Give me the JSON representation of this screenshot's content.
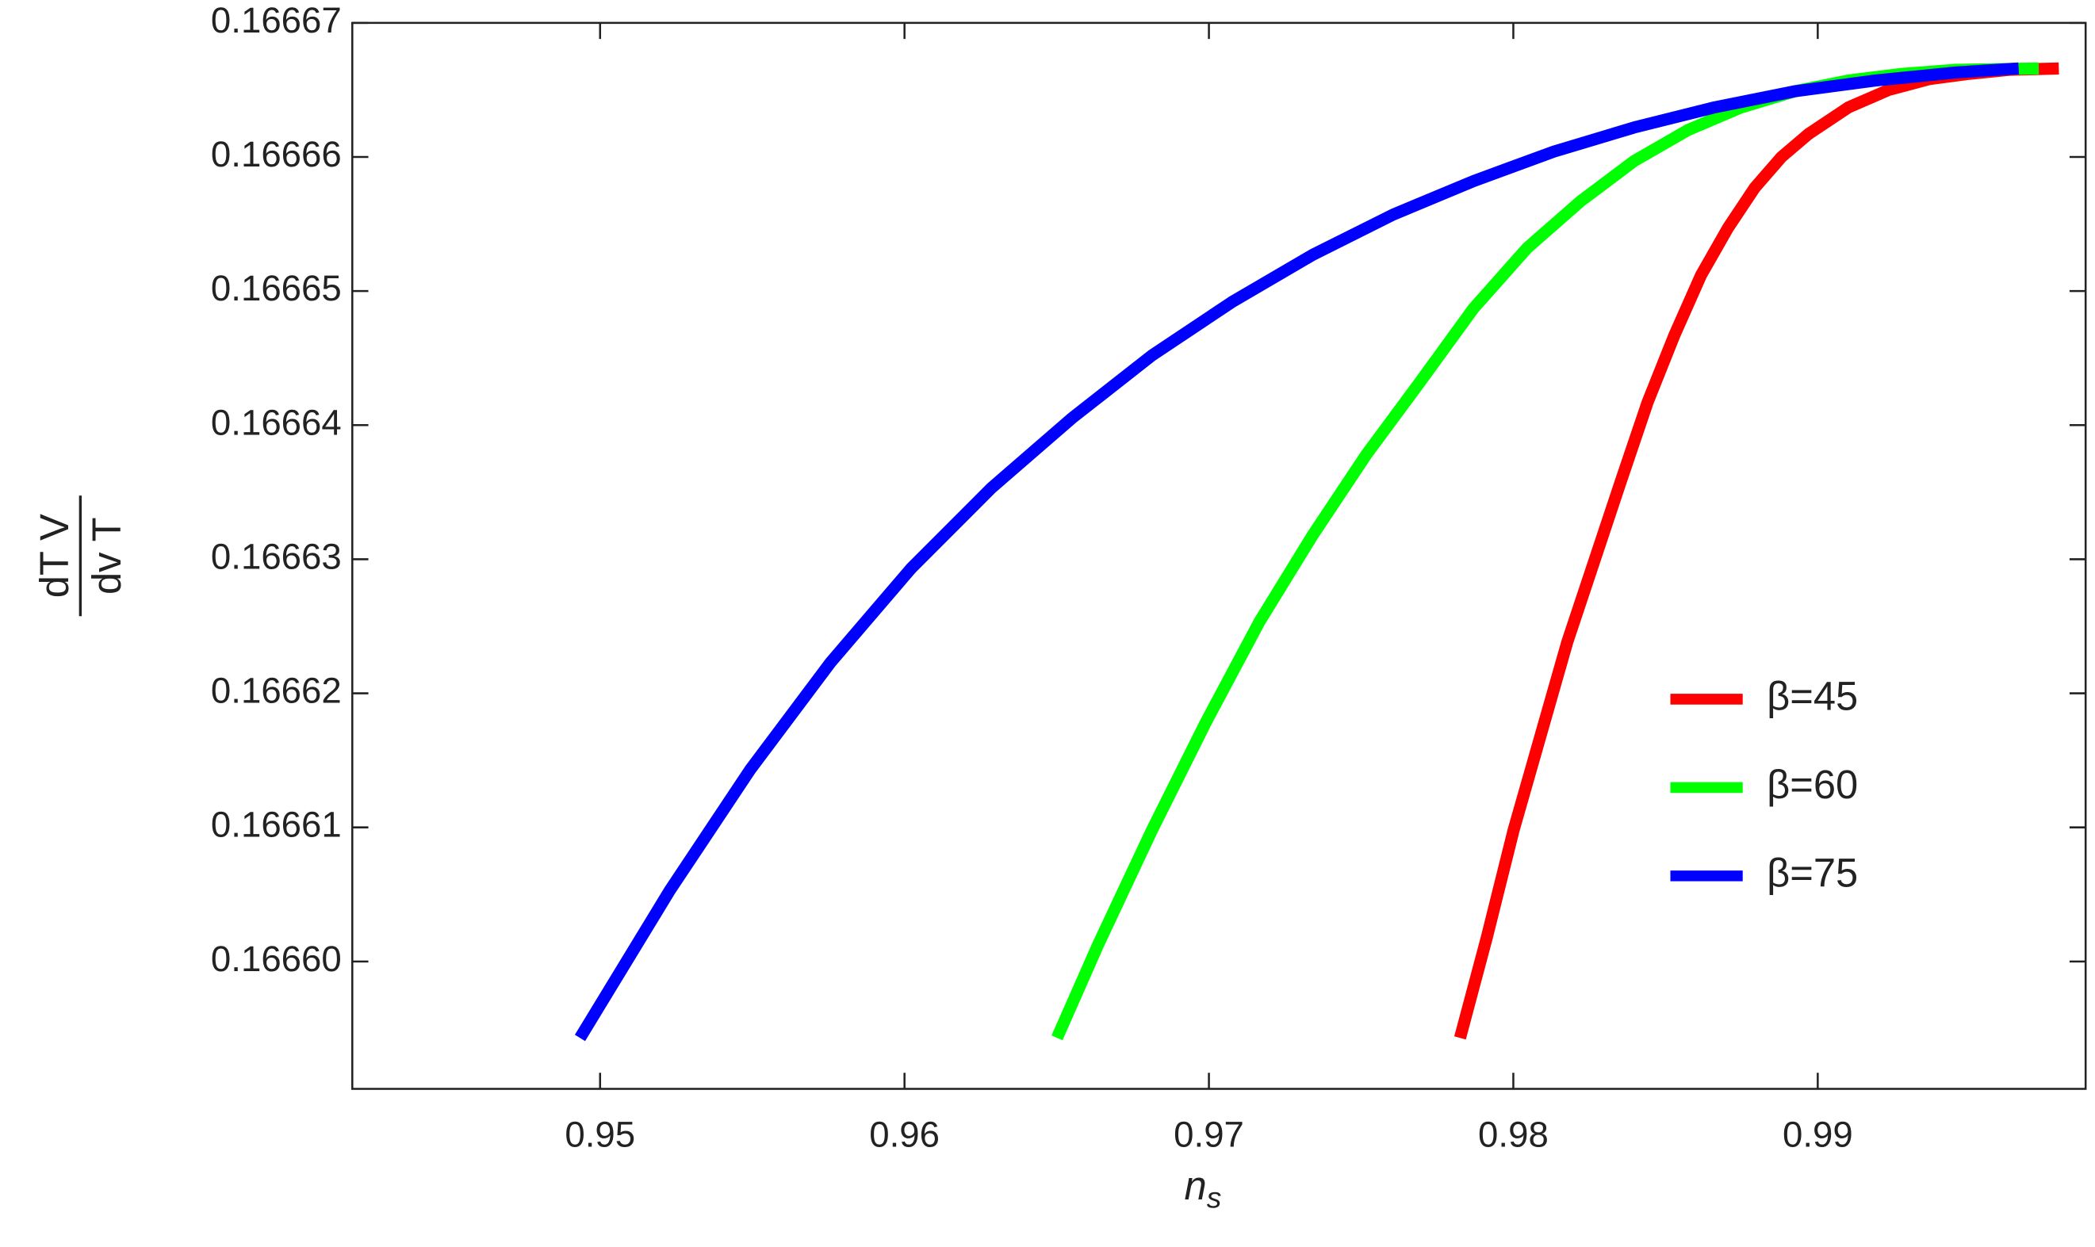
{
  "chart_data": {
    "type": "line",
    "xlabel": {
      "text": "n",
      "subscript": "s"
    },
    "ylabel": {
      "numerator": "dT V",
      "denominator": "dv T"
    },
    "xlim": [
      0.94186,
      0.9988
    ],
    "ylim": [
      0.1665905,
      0.16667
    ],
    "xticks": [
      0.95,
      0.96,
      0.97,
      0.98,
      0.99
    ],
    "yticks": [
      {
        "value": 0.1666,
        "label": "0.16660"
      },
      0.16661,
      0.16662,
      0.16663,
      0.16664,
      0.16665,
      0.16666,
      0.16667
    ],
    "legend": "right",
    "series": [
      {
        "name": "β=45",
        "color": "#ff0000",
        "x": [
          0.97825,
          0.97913,
          0.98001,
          0.98089,
          0.98177,
          0.98265,
          0.98353,
          0.98441,
          0.98529,
          0.98617,
          0.98705,
          0.98793,
          0.98881,
          0.98969,
          0.99101,
          0.99233,
          0.99365,
          0.99497,
          0.99629,
          0.99792
        ],
        "values": [
          0.1665943,
          0.1666018,
          0.1666098,
          0.1666168,
          0.1666238,
          0.1666298,
          0.1666358,
          0.1666417,
          0.1666467,
          0.1666512,
          0.1666547,
          0.1666577,
          0.16666,
          0.1666617,
          0.1666637,
          0.166665,
          0.1666658,
          0.1666662,
          0.1666665,
          0.1666666
        ]
      },
      {
        "name": "β=60",
        "color": "#00ff00",
        "x": [
          0.96501,
          0.96637,
          0.96813,
          0.96989,
          0.97165,
          0.97341,
          0.97517,
          0.97693,
          0.97869,
          0.98045,
          0.98221,
          0.98397,
          0.98573,
          0.98749,
          0.98925,
          0.99101,
          0.99277,
          0.99453,
          0.99726
        ],
        "values": [
          0.1665943,
          0.1666013,
          0.1666098,
          0.1666178,
          0.1666253,
          0.1666318,
          0.1666378,
          0.1666432,
          0.1666487,
          0.1666532,
          0.1666567,
          0.1666597,
          0.166662,
          0.1666637,
          0.1666649,
          0.1666657,
          0.1666662,
          0.1666665,
          0.1666666
        ]
      },
      {
        "name": "β=75",
        "color": "#0000ff",
        "x": [
          0.94934,
          0.95229,
          0.95493,
          0.95757,
          0.96021,
          0.96285,
          0.96549,
          0.96813,
          0.97077,
          0.97341,
          0.97605,
          0.97869,
          0.98133,
          0.98397,
          0.98661,
          0.98925,
          0.99189,
          0.99453,
          0.9966
        ],
        "values": [
          0.1665943,
          0.1666053,
          0.1666143,
          0.1666223,
          0.1666293,
          0.1666353,
          0.1666405,
          0.1666452,
          0.1666492,
          0.1666527,
          0.1666557,
          0.1666582,
          0.1666604,
          0.1666622,
          0.1666637,
          0.1666649,
          0.1666657,
          0.1666663,
          0.1666666
        ]
      }
    ]
  }
}
